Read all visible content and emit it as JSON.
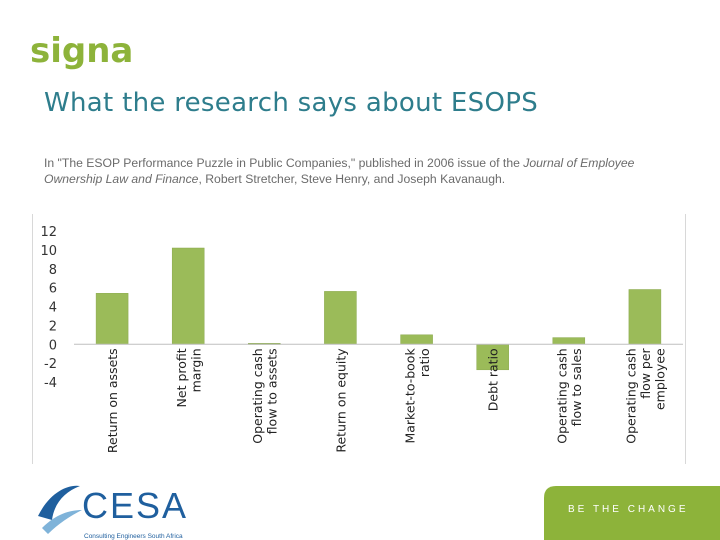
{
  "header": {
    "logo_text": "signa",
    "title": "What the research says about ESOPS"
  },
  "citation": {
    "before": "In \"The ESOP Performance Puzzle in Public Companies,\" published in 2006 issue of the ",
    "journal": "Journal of Employee Ownership Law and Finance",
    "after": ", Robert Stretcher, Steve Henry, and Joseph Kavanaugh."
  },
  "footer": {
    "cesa_name": "CESA",
    "cesa_tagline": "Consulting Engineers South Africa",
    "slogan": "BE THE CHANGE"
  },
  "colors": {
    "title": "#2e7d8c",
    "bar": "#9bbb59",
    "logo_green": "#8db33a",
    "band": "#8db33a",
    "cesa_blue": "#1f5f9e"
  },
  "chart_data": {
    "type": "bar",
    "categories": [
      [
        "Return on assets"
      ],
      [
        "Net profit",
        "margin"
      ],
      [
        "Operating cash",
        "flow to assets"
      ],
      [
        "Return on equity"
      ],
      [
        "Market-to-book",
        "ratio"
      ],
      [
        "Debt ratio"
      ],
      [
        "Operating cash",
        "flow to sales"
      ],
      [
        "Operating cash",
        "flow per",
        "employee"
      ]
    ],
    "values": [
      5.4,
      10.2,
      0.1,
      5.6,
      1.0,
      -2.7,
      0.7,
      5.8
    ],
    "yticks": [
      12,
      10,
      8,
      6,
      4,
      2,
      0,
      -2,
      -4
    ],
    "ylim": [
      -4,
      12
    ],
    "grid": false,
    "legend": "none",
    "title": "",
    "xlabel": "",
    "ylabel": ""
  }
}
